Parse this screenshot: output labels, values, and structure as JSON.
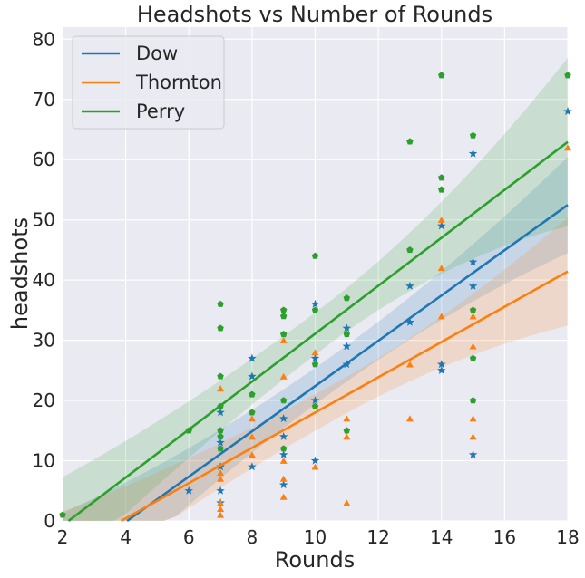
{
  "chart_data": {
    "type": "scatter",
    "title": "Headshots vs Number of Rounds",
    "xlabel": "Rounds",
    "ylabel": "headshots",
    "xlim": [
      2,
      18
    ],
    "ylim": [
      0,
      82
    ],
    "xticks": [
      2,
      4,
      6,
      8,
      10,
      12,
      14,
      16,
      18
    ],
    "yticks": [
      0,
      10,
      20,
      30,
      40,
      50,
      60,
      70,
      80
    ],
    "grid": true,
    "legend_position": "top-left",
    "series": [
      {
        "name": "Dow",
        "color": "#1f77b4",
        "marker": "star",
        "regression": {
          "slope": 3.76,
          "intercept": -15.2,
          "ci_half_width_at_ends": [
            9,
            8
          ],
          "ci_half_width_at_mean": 3
        },
        "points": [
          [
            6,
            5
          ],
          [
            7,
            3
          ],
          [
            7,
            5
          ],
          [
            7,
            9
          ],
          [
            7,
            13
          ],
          [
            7,
            18
          ],
          [
            8,
            9
          ],
          [
            8,
            24
          ],
          [
            8,
            27
          ],
          [
            9,
            6
          ],
          [
            9,
            11
          ],
          [
            9,
            14
          ],
          [
            9,
            17
          ],
          [
            10,
            10
          ],
          [
            10,
            20
          ],
          [
            10,
            27
          ],
          [
            10,
            36
          ],
          [
            11,
            26
          ],
          [
            11,
            29
          ],
          [
            11,
            32
          ],
          [
            13,
            33
          ],
          [
            13,
            39
          ],
          [
            14,
            25
          ],
          [
            14,
            26
          ],
          [
            14,
            49
          ],
          [
            15,
            11
          ],
          [
            15,
            39
          ],
          [
            15,
            43
          ],
          [
            15,
            61
          ],
          [
            18,
            68
          ]
        ]
      },
      {
        "name": "Thornton",
        "color": "#ff7f0e",
        "marker": "triangle",
        "regression": {
          "slope": 2.93,
          "intercept": -11.3,
          "ci_half_width_at_ends": [
            7,
            9
          ],
          "ci_half_width_at_mean": 3
        },
        "points": [
          [
            7,
            1
          ],
          [
            7,
            2
          ],
          [
            7,
            3
          ],
          [
            7,
            7
          ],
          [
            7,
            8
          ],
          [
            7,
            22
          ],
          [
            8,
            11
          ],
          [
            8,
            14
          ],
          [
            8,
            17
          ],
          [
            9,
            4
          ],
          [
            9,
            7
          ],
          [
            9,
            10
          ],
          [
            9,
            24
          ],
          [
            9,
            30
          ],
          [
            10,
            9
          ],
          [
            10,
            28
          ],
          [
            11,
            3
          ],
          [
            11,
            14
          ],
          [
            11,
            17
          ],
          [
            13,
            17
          ],
          [
            13,
            26
          ],
          [
            14,
            34
          ],
          [
            14,
            42
          ],
          [
            14,
            50
          ],
          [
            15,
            14
          ],
          [
            15,
            17
          ],
          [
            15,
            29
          ],
          [
            15,
            34
          ],
          [
            18,
            62
          ]
        ]
      },
      {
        "name": "Perry",
        "color": "#2ca02c",
        "marker": "pentagon",
        "regression": {
          "slope": 3.98,
          "intercept": -8.7,
          "ci_half_width_at_ends": [
            8,
            14
          ],
          "ci_half_width_at_mean": 3.5
        },
        "points": [
          [
            2,
            1
          ],
          [
            6,
            15
          ],
          [
            7,
            12
          ],
          [
            7,
            14
          ],
          [
            7,
            15
          ],
          [
            7,
            19
          ],
          [
            7,
            24
          ],
          [
            7,
            32
          ],
          [
            7,
            36
          ],
          [
            8,
            18
          ],
          [
            8,
            21
          ],
          [
            9,
            12
          ],
          [
            9,
            20
          ],
          [
            9,
            31
          ],
          [
            9,
            34
          ],
          [
            9,
            35
          ],
          [
            10,
            19
          ],
          [
            10,
            26
          ],
          [
            10,
            35
          ],
          [
            10,
            44
          ],
          [
            11,
            15
          ],
          [
            11,
            31
          ],
          [
            11,
            37
          ],
          [
            13,
            45
          ],
          [
            13,
            63
          ],
          [
            14,
            55
          ],
          [
            14,
            57
          ],
          [
            14,
            74
          ],
          [
            15,
            20
          ],
          [
            15,
            27
          ],
          [
            15,
            35
          ],
          [
            15,
            64
          ],
          [
            18,
            74
          ]
        ]
      }
    ]
  }
}
